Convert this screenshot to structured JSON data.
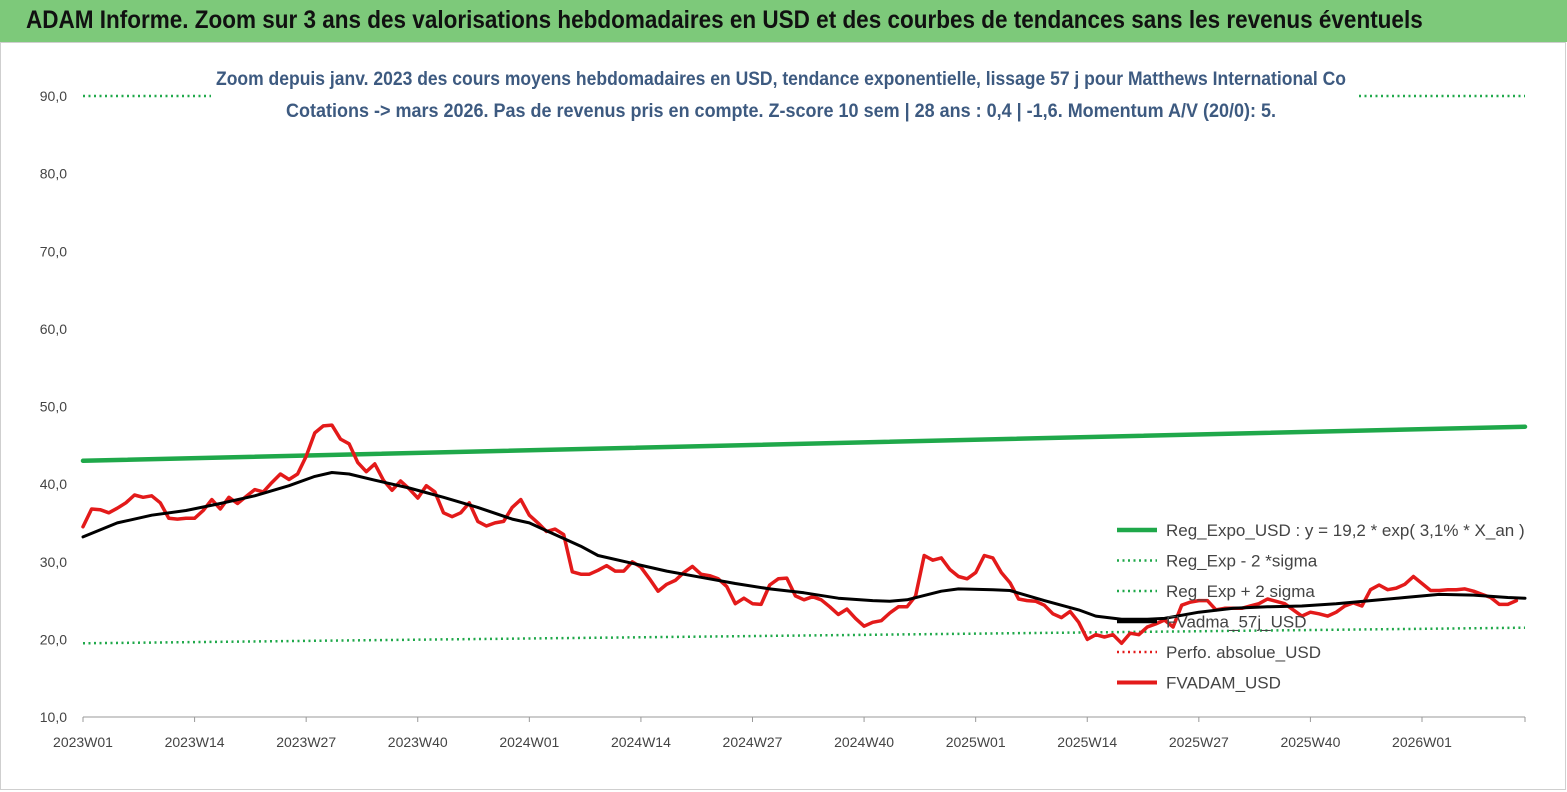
{
  "banner": {
    "title": "ADAM Informe. Zoom sur 3 ans des valorisations hebdomadaires en USD et des courbes de tendances sans les revenus éventuels"
  },
  "colors": {
    "banner": "#7dc97a",
    "reg_expo": "#1fa84a",
    "bands": "#1fa84a",
    "perfo": "#e31a1a",
    "fvadma": "#000000",
    "fvadam": "#e31a1a",
    "subtitle": "#3d5a80"
  },
  "chart_data": {
    "type": "line",
    "title_lines": [
      "Zoom depuis janv. 2023 des cours moyens hebdomadaires en USD, tendance exponentielle, lissage 57 j pour Matthews International Co",
      "Cotations -> mars 2026. Pas de revenus pris en compte. Z-score 10 sem | 28 ans : 0,4 | -1,6. Momentum A/V (20/0): 5."
    ],
    "xlabel": "",
    "ylabel": "",
    "ylim": [
      10,
      90
    ],
    "yticks": [
      "10,0",
      "20,0",
      "30,0",
      "40,0",
      "50,0",
      "60,0",
      "70,0",
      "80,0",
      "90,0"
    ],
    "x_ticks": [
      "2023W01",
      "2023W14",
      "2023W27",
      "2023W40",
      "2024W01",
      "2024W14",
      "2024W27",
      "2024W40",
      "2025W01",
      "2025W14",
      "2025W27",
      "2025W40",
      "2026W01"
    ],
    "x_tick_positions": [
      0,
      13,
      26,
      39,
      52,
      65,
      78,
      91,
      104,
      117,
      130,
      143,
      156
    ],
    "x_range": [
      0,
      168
    ],
    "grid": false,
    "legend_position": "bottom-right",
    "series": [
      {
        "name": "Reg_Expo_USD : y = 19,2 * exp( 3,1% *  X_an )",
        "style": "solid-thick",
        "points": [
          [
            0,
            43.0
          ],
          [
            168,
            47.4
          ]
        ]
      },
      {
        "name": "Reg_Exp - 2 *sigma",
        "style": "dotted",
        "points": [
          [
            0,
            19.5
          ],
          [
            168,
            21.5
          ]
        ]
      },
      {
        "name": "Reg_Exp + 2 sigma",
        "style": "dotted",
        "points": [
          [
            0,
            90.0
          ],
          [
            168,
            90.0
          ]
        ]
      },
      {
        "name": "FVadma_57j_USD",
        "style": "solid-medium",
        "points": [
          [
            0,
            33.2
          ],
          [
            4,
            35.0
          ],
          [
            8,
            36.0
          ],
          [
            12,
            36.6
          ],
          [
            16,
            37.5
          ],
          [
            20,
            38.5
          ],
          [
            24,
            39.8
          ],
          [
            27,
            41.0
          ],
          [
            29,
            41.5
          ],
          [
            31,
            41.3
          ],
          [
            34,
            40.5
          ],
          [
            38,
            39.5
          ],
          [
            42,
            38.3
          ],
          [
            46,
            37.0
          ],
          [
            50,
            35.5
          ],
          [
            52,
            35.0
          ],
          [
            54,
            34.0
          ],
          [
            56,
            33.0
          ],
          [
            58,
            32.0
          ],
          [
            60,
            30.8
          ],
          [
            64,
            29.8
          ],
          [
            68,
            28.8
          ],
          [
            72,
            28.0
          ],
          [
            76,
            27.2
          ],
          [
            80,
            26.5
          ],
          [
            84,
            26.0
          ],
          [
            88,
            25.3
          ],
          [
            92,
            25.0
          ],
          [
            94,
            24.9
          ],
          [
            96,
            25.1
          ],
          [
            100,
            26.2
          ],
          [
            102,
            26.5
          ],
          [
            106,
            26.4
          ],
          [
            108,
            26.3
          ],
          [
            112,
            25.0
          ],
          [
            116,
            23.8
          ],
          [
            118,
            23.0
          ],
          [
            121,
            22.6
          ],
          [
            124,
            22.6
          ],
          [
            126,
            22.7
          ],
          [
            130,
            23.5
          ],
          [
            134,
            24.0
          ],
          [
            138,
            24.2
          ],
          [
            142,
            24.3
          ],
          [
            146,
            24.6
          ],
          [
            150,
            25.0
          ],
          [
            154,
            25.4
          ],
          [
            158,
            25.8
          ],
          [
            162,
            25.7
          ],
          [
            166,
            25.4
          ],
          [
            168,
            25.3
          ]
        ]
      },
      {
        "name": "Perfo. absolue_USD",
        "style": "dotted",
        "points": []
      },
      {
        "name": "FVADAM_USD",
        "style": "solid-thick",
        "points": [
          [
            0,
            34.5
          ],
          [
            1,
            36.8
          ],
          [
            2,
            36.7
          ],
          [
            3,
            36.3
          ],
          [
            4,
            36.9
          ],
          [
            5,
            37.6
          ],
          [
            6,
            38.6
          ],
          [
            7,
            38.3
          ],
          [
            8,
            38.5
          ],
          [
            9,
            37.6
          ],
          [
            10,
            35.6
          ],
          [
            11,
            35.5
          ],
          [
            12,
            35.6
          ],
          [
            13,
            35.6
          ],
          [
            14,
            36.6
          ],
          [
            15,
            38.0
          ],
          [
            16,
            36.8
          ],
          [
            17,
            38.3
          ],
          [
            18,
            37.5
          ],
          [
            19,
            38.4
          ],
          [
            20,
            39.3
          ],
          [
            21,
            39.0
          ],
          [
            22,
            40.2
          ],
          [
            23,
            41.3
          ],
          [
            24,
            40.6
          ],
          [
            25,
            41.3
          ],
          [
            26,
            43.6
          ],
          [
            27,
            46.6
          ],
          [
            28,
            47.5
          ],
          [
            29,
            47.6
          ],
          [
            30,
            45.8
          ],
          [
            31,
            45.2
          ],
          [
            32,
            42.8
          ],
          [
            33,
            41.6
          ],
          [
            34,
            42.6
          ],
          [
            35,
            40.5
          ],
          [
            36,
            39.2
          ],
          [
            37,
            40.4
          ],
          [
            38,
            39.4
          ],
          [
            39,
            38.2
          ],
          [
            40,
            39.8
          ],
          [
            41,
            39.0
          ],
          [
            42,
            36.3
          ],
          [
            43,
            35.8
          ],
          [
            44,
            36.3
          ],
          [
            45,
            37.6
          ],
          [
            46,
            35.2
          ],
          [
            47,
            34.6
          ],
          [
            48,
            35.0
          ],
          [
            49,
            35.2
          ],
          [
            50,
            37.0
          ],
          [
            51,
            38.0
          ],
          [
            52,
            36.0
          ],
          [
            53,
            35.0
          ],
          [
            54,
            33.9
          ],
          [
            55,
            34.2
          ],
          [
            56,
            33.5
          ],
          [
            57,
            28.7
          ],
          [
            58,
            28.4
          ],
          [
            59,
            28.4
          ],
          [
            60,
            28.9
          ],
          [
            61,
            29.5
          ],
          [
            62,
            28.8
          ],
          [
            63,
            28.8
          ],
          [
            64,
            30.0
          ],
          [
            65,
            29.3
          ],
          [
            66,
            27.8
          ],
          [
            67,
            26.2
          ],
          [
            68,
            27.1
          ],
          [
            69,
            27.6
          ],
          [
            70,
            28.6
          ],
          [
            71,
            29.4
          ],
          [
            72,
            28.4
          ],
          [
            73,
            28.2
          ],
          [
            74,
            27.8
          ],
          [
            75,
            26.8
          ],
          [
            76,
            24.6
          ],
          [
            77,
            25.3
          ],
          [
            78,
            24.6
          ],
          [
            79,
            24.5
          ],
          [
            80,
            27.0
          ],
          [
            81,
            27.8
          ],
          [
            82,
            27.9
          ],
          [
            83,
            25.6
          ],
          [
            84,
            25.1
          ],
          [
            85,
            25.5
          ],
          [
            86,
            25.1
          ],
          [
            87,
            24.2
          ],
          [
            88,
            23.2
          ],
          [
            89,
            23.9
          ],
          [
            90,
            22.7
          ],
          [
            91,
            21.7
          ],
          [
            92,
            22.2
          ],
          [
            93,
            22.4
          ],
          [
            94,
            23.4
          ],
          [
            95,
            24.2
          ],
          [
            96,
            24.2
          ],
          [
            97,
            25.6
          ],
          [
            98,
            30.8
          ],
          [
            99,
            30.2
          ],
          [
            100,
            30.5
          ],
          [
            101,
            29.0
          ],
          [
            102,
            28.1
          ],
          [
            103,
            27.8
          ],
          [
            104,
            28.6
          ],
          [
            105,
            30.8
          ],
          [
            106,
            30.5
          ],
          [
            107,
            28.6
          ],
          [
            108,
            27.3
          ],
          [
            109,
            25.2
          ],
          [
            110,
            25.0
          ],
          [
            111,
            24.9
          ],
          [
            112,
            24.4
          ],
          [
            113,
            23.3
          ],
          [
            114,
            22.8
          ],
          [
            115,
            23.6
          ],
          [
            116,
            22.2
          ],
          [
            117,
            20.0
          ],
          [
            118,
            20.6
          ],
          [
            119,
            20.3
          ],
          [
            120,
            20.6
          ],
          [
            121,
            19.5
          ],
          [
            122,
            20.8
          ],
          [
            123,
            20.6
          ],
          [
            124,
            21.6
          ],
          [
            125,
            22.0
          ],
          [
            126,
            22.5
          ],
          [
            127,
            21.6
          ],
          [
            128,
            24.4
          ],
          [
            129,
            24.8
          ],
          [
            130,
            25.0
          ],
          [
            131,
            25.0
          ],
          [
            132,
            23.8
          ],
          [
            133,
            24.0
          ],
          [
            134,
            24.0
          ],
          [
            135,
            24.0
          ],
          [
            136,
            24.3
          ],
          [
            137,
            24.6
          ],
          [
            138,
            25.2
          ],
          [
            139,
            24.9
          ],
          [
            140,
            24.6
          ],
          [
            141,
            23.8
          ],
          [
            142,
            23.0
          ],
          [
            143,
            23.5
          ],
          [
            144,
            23.3
          ],
          [
            145,
            23.0
          ],
          [
            146,
            23.5
          ],
          [
            147,
            24.3
          ],
          [
            148,
            24.7
          ],
          [
            149,
            24.3
          ],
          [
            150,
            26.4
          ],
          [
            151,
            27.0
          ],
          [
            152,
            26.4
          ],
          [
            153,
            26.6
          ],
          [
            154,
            27.1
          ],
          [
            155,
            28.1
          ],
          [
            156,
            27.2
          ],
          [
            157,
            26.3
          ],
          [
            158,
            26.3
          ],
          [
            159,
            26.4
          ],
          [
            160,
            26.4
          ],
          [
            161,
            26.5
          ],
          [
            162,
            26.2
          ],
          [
            163,
            25.8
          ],
          [
            164,
            25.4
          ],
          [
            165,
            24.5
          ],
          [
            166,
            24.5
          ],
          [
            167,
            25.0
          ]
        ]
      }
    ]
  }
}
